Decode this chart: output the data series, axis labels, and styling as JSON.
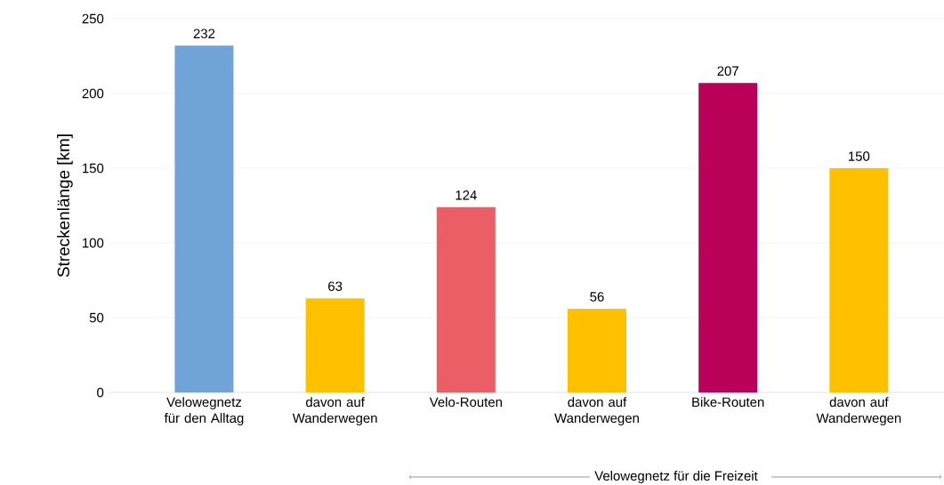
{
  "chart_data": {
    "type": "bar",
    "ylabel": "Streckenlänge [km]",
    "categories": [
      "Velowegnetz für den Alltag",
      "davon auf Wanderwegen",
      "Velo-Routen",
      "davon auf Wanderwegen",
      "Bike-Routen",
      "davon auf Wanderwegen"
    ],
    "values": [
      232,
      63,
      124,
      56,
      207,
      150
    ],
    "colors": [
      "#70a3d7",
      "#ffc000",
      "#eb5e65",
      "#ffc000",
      "#bb005a",
      "#ffc000"
    ],
    "ylim": [
      0,
      250
    ],
    "yticks": [
      0,
      50,
      100,
      150,
      200,
      250
    ],
    "grid": "y",
    "data_labels": true,
    "annotations": [
      "Velowegnetz für die Freizeit"
    ]
  }
}
